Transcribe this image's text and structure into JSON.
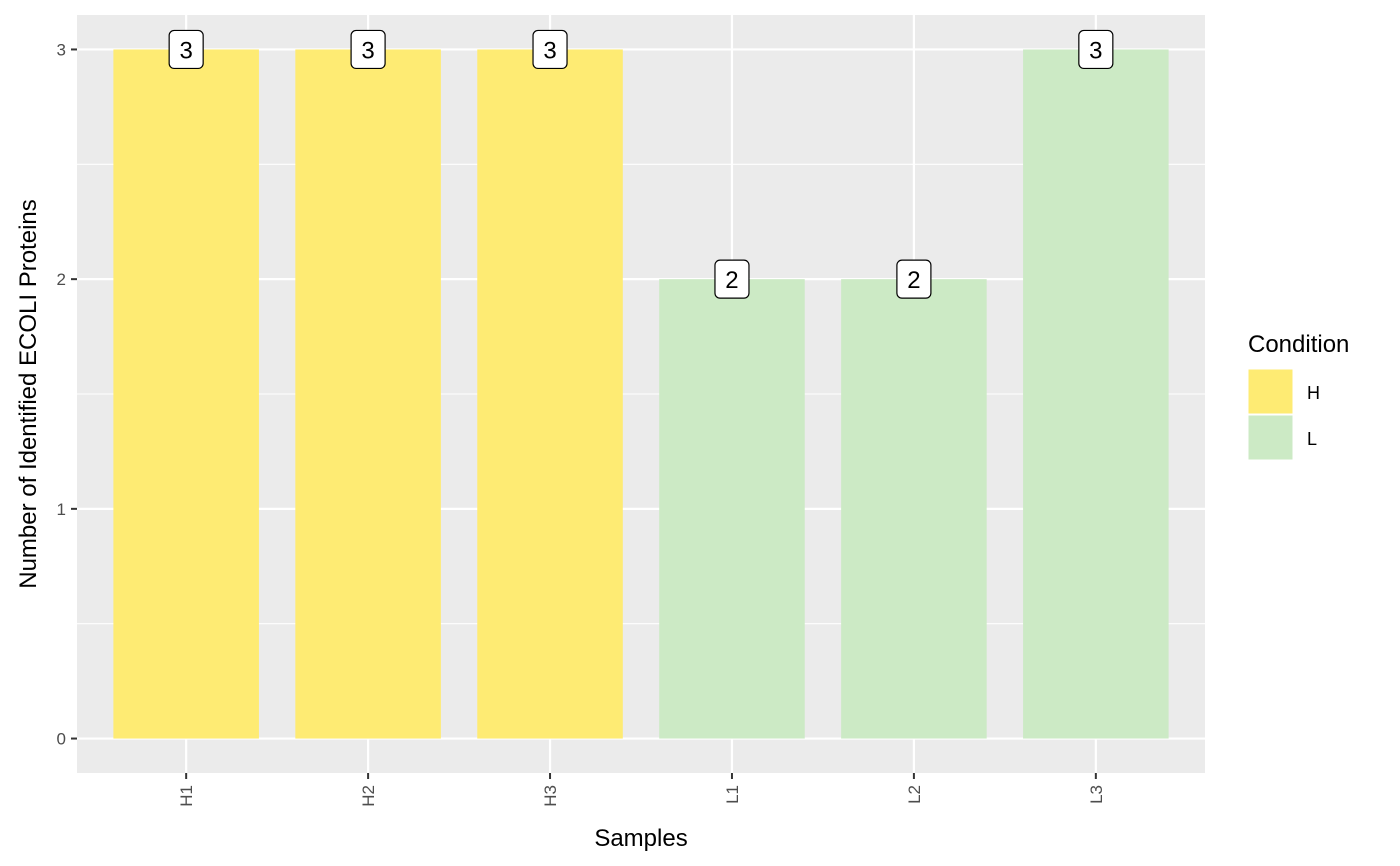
{
  "chart_data": {
    "type": "bar",
    "categories": [
      "H1",
      "H2",
      "H3",
      "L1",
      "L2",
      "L3"
    ],
    "values": [
      3,
      3,
      3,
      2,
      2,
      3
    ],
    "data_labels": [
      "3",
      "3",
      "3",
      "2",
      "2",
      "3"
    ],
    "groups": [
      "H",
      "H",
      "H",
      "L",
      "L",
      "L"
    ],
    "xlabel": "Samples",
    "ylabel": "Number of Identified ECOLI Proteins",
    "ylim": [
      -0.15,
      3.15
    ],
    "yticks": [
      0,
      1,
      2,
      3
    ],
    "ytick_labels": [
      "0",
      "1",
      "2",
      "3"
    ],
    "grid": true,
    "legend": {
      "title": "Condition",
      "placement": "right",
      "items": [
        {
          "label": "H",
          "color": "#FEEB73"
        },
        {
          "label": "L",
          "color": "#CCEAC5"
        }
      ]
    },
    "colors": {
      "panel_background": "#EBEBEB",
      "grid": "#FFFFFF",
      "H": "#FEEB73",
      "L": "#CCEAC5"
    }
  }
}
